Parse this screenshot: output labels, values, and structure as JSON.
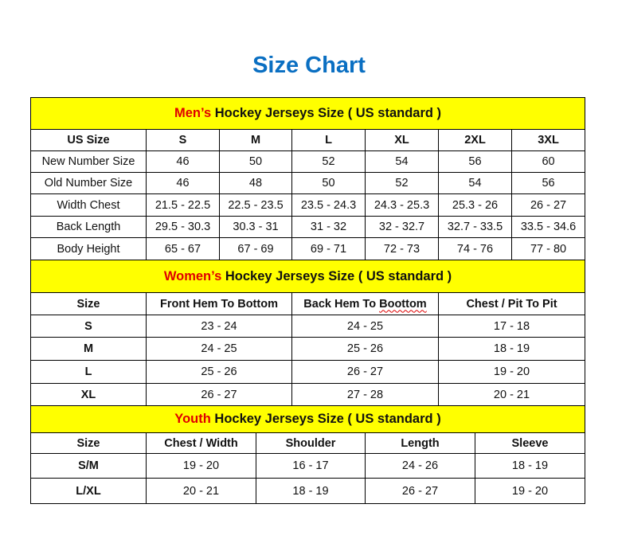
{
  "title": "Size Chart",
  "colors": {
    "title": "#0a6fc2",
    "header_bg": "#ffff00",
    "highlight": "#e00000"
  },
  "mens": {
    "heading_highlight": "Men’s",
    "heading_rest": " Hockey Jerseys Size ( US standard )",
    "columns": [
      "US Size",
      "S",
      "M",
      "L",
      "XL",
      "2XL",
      "3XL"
    ],
    "rows": [
      [
        "New Number Size",
        "46",
        "50",
        "52",
        "54",
        "56",
        "60"
      ],
      [
        "Old Number Size",
        "46",
        "48",
        "50",
        "52",
        "54",
        "56"
      ],
      [
        "Width Chest",
        "21.5 - 22.5",
        "22.5 - 23.5",
        "23.5 - 24.3",
        "24.3 - 25.3",
        "25.3 - 26",
        "26 - 27"
      ],
      [
        "Back Length",
        "29.5 - 30.3",
        "30.3 - 31",
        "31 - 32",
        "32 - 32.7",
        "32.7 - 33.5",
        "33.5 - 34.6"
      ],
      [
        "Body Height",
        "65 - 67",
        "67 - 69",
        "69 - 71",
        "72 - 73",
        "74 - 76",
        "77 - 80"
      ]
    ]
  },
  "womens": {
    "heading_highlight": "Women’s",
    "heading_rest": " Hockey Jerseys Size ( US standard )",
    "columns": [
      "Size",
      "Front Hem To Bottom",
      "Back Hem To Boottom",
      "Chest / Pit To Pit"
    ],
    "rows": [
      [
        "S",
        "23 - 24",
        "24 - 25",
        "17 - 18"
      ],
      [
        "M",
        "24 - 25",
        "25 - 26",
        "18 - 19"
      ],
      [
        "L",
        "25 - 26",
        "26 - 27",
        "19 - 20"
      ],
      [
        "XL",
        "26 - 27",
        "27 - 28",
        "20 - 21"
      ]
    ]
  },
  "youth": {
    "heading_highlight": "Youth",
    "heading_rest": " Hockey Jerseys Size ( US standard )",
    "columns": [
      "Size",
      "Chest / Width",
      "Shoulder",
      "Length",
      "Sleeve"
    ],
    "rows": [
      [
        "S/M",
        "19 - 20",
        "16 - 17",
        "24 - 26",
        "18 - 19"
      ],
      [
        "L/XL",
        "20 - 21",
        "18 - 19",
        "26 - 27",
        "19 - 20"
      ]
    ]
  }
}
